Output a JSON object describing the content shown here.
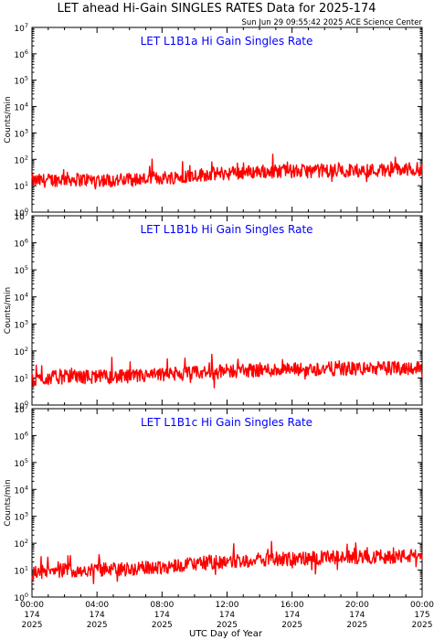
{
  "figure": {
    "title": "LET ahead Hi-Gain SINGLES RATES Data for 2025-174",
    "timestamp": "Sun Jun 29 09:55:42 2025 ACE Science Center",
    "xlabel": "UTC Day of Year",
    "ylabel": "Counts/min",
    "colors": {
      "series": "#ff0000",
      "panel_title": "#0000ff",
      "axes": "#000000"
    }
  },
  "chart_data": [
    {
      "type": "line",
      "title": "LET L1B1a Hi Gain Singles Rate",
      "ylabel": "Counts/min",
      "yscale": "log",
      "ylim": [
        1,
        10000000
      ],
      "y_tick_labels": [
        "10^0",
        "10^1",
        "10^2",
        "10^3",
        "10^4",
        "10^5",
        "10^6",
        "10^7"
      ],
      "xlim_hours": [
        0,
        24
      ],
      "series": [
        {
          "x_hours": [
            0,
            1,
            2,
            3,
            4,
            5,
            6,
            7,
            8,
            9,
            10,
            11,
            12,
            13,
            14,
            15,
            16,
            17,
            18,
            19,
            20,
            21,
            22,
            23,
            24
          ],
          "values": [
            15,
            16,
            18,
            17,
            17,
            16,
            17,
            18,
            20,
            22,
            25,
            28,
            30,
            32,
            35,
            36,
            35,
            36,
            38,
            37,
            38,
            39,
            40,
            41,
            42
          ]
        }
      ]
    },
    {
      "type": "line",
      "title": "LET L1B1b Hi Gain Singles Rate",
      "ylabel": "Counts/min",
      "yscale": "log",
      "ylim": [
        1,
        10000000
      ],
      "y_tick_labels": [
        "10^0",
        "10^1",
        "10^2",
        "10^3",
        "10^4",
        "10^5",
        "10^6",
        "10^7"
      ],
      "xlim_hours": [
        0,
        24
      ],
      "series": [
        {
          "x_hours": [
            0,
            1,
            2,
            3,
            4,
            5,
            6,
            7,
            8,
            9,
            10,
            11,
            12,
            13,
            14,
            15,
            16,
            17,
            18,
            19,
            20,
            21,
            22,
            23,
            24
          ],
          "values": [
            8,
            10,
            11,
            11,
            11,
            11,
            11,
            12,
            13,
            14,
            15,
            16,
            18,
            19,
            20,
            20,
            20,
            21,
            22,
            22,
            22,
            23,
            23,
            24,
            24
          ]
        }
      ]
    },
    {
      "type": "line",
      "title": "LET L1B1c Hi Gain Singles Rate",
      "ylabel": "Counts/min",
      "yscale": "log",
      "ylim": [
        1,
        10000000
      ],
      "y_tick_labels": [
        "10^0",
        "10^1",
        "10^2",
        "10^3",
        "10^4",
        "10^5",
        "10^6",
        "10^7"
      ],
      "xlim_hours": [
        0,
        24
      ],
      "x_tick_labels": [
        {
          "time": "00:00",
          "doy": "174",
          "year": "2025"
        },
        {
          "time": "04:00",
          "doy": "174",
          "year": "2025"
        },
        {
          "time": "08:00",
          "doy": "174",
          "year": "2025"
        },
        {
          "time": "12:00",
          "doy": "174",
          "year": "2025"
        },
        {
          "time": "16:00",
          "doy": "174",
          "year": "2025"
        },
        {
          "time": "20:00",
          "doy": "174",
          "year": "2025"
        },
        {
          "time": "00:00",
          "doy": "175",
          "year": "2025"
        }
      ],
      "series": [
        {
          "x_hours": [
            0,
            1,
            2,
            3,
            4,
            5,
            6,
            7,
            8,
            9,
            10,
            11,
            12,
            13,
            14,
            15,
            16,
            17,
            18,
            19,
            20,
            21,
            22,
            23,
            24
          ],
          "values": [
            8,
            9,
            10,
            10,
            10,
            11,
            11,
            12,
            13,
            15,
            17,
            19,
            21,
            23,
            25,
            26,
            26,
            27,
            29,
            29,
            30,
            31,
            32,
            33,
            34
          ]
        }
      ]
    }
  ]
}
